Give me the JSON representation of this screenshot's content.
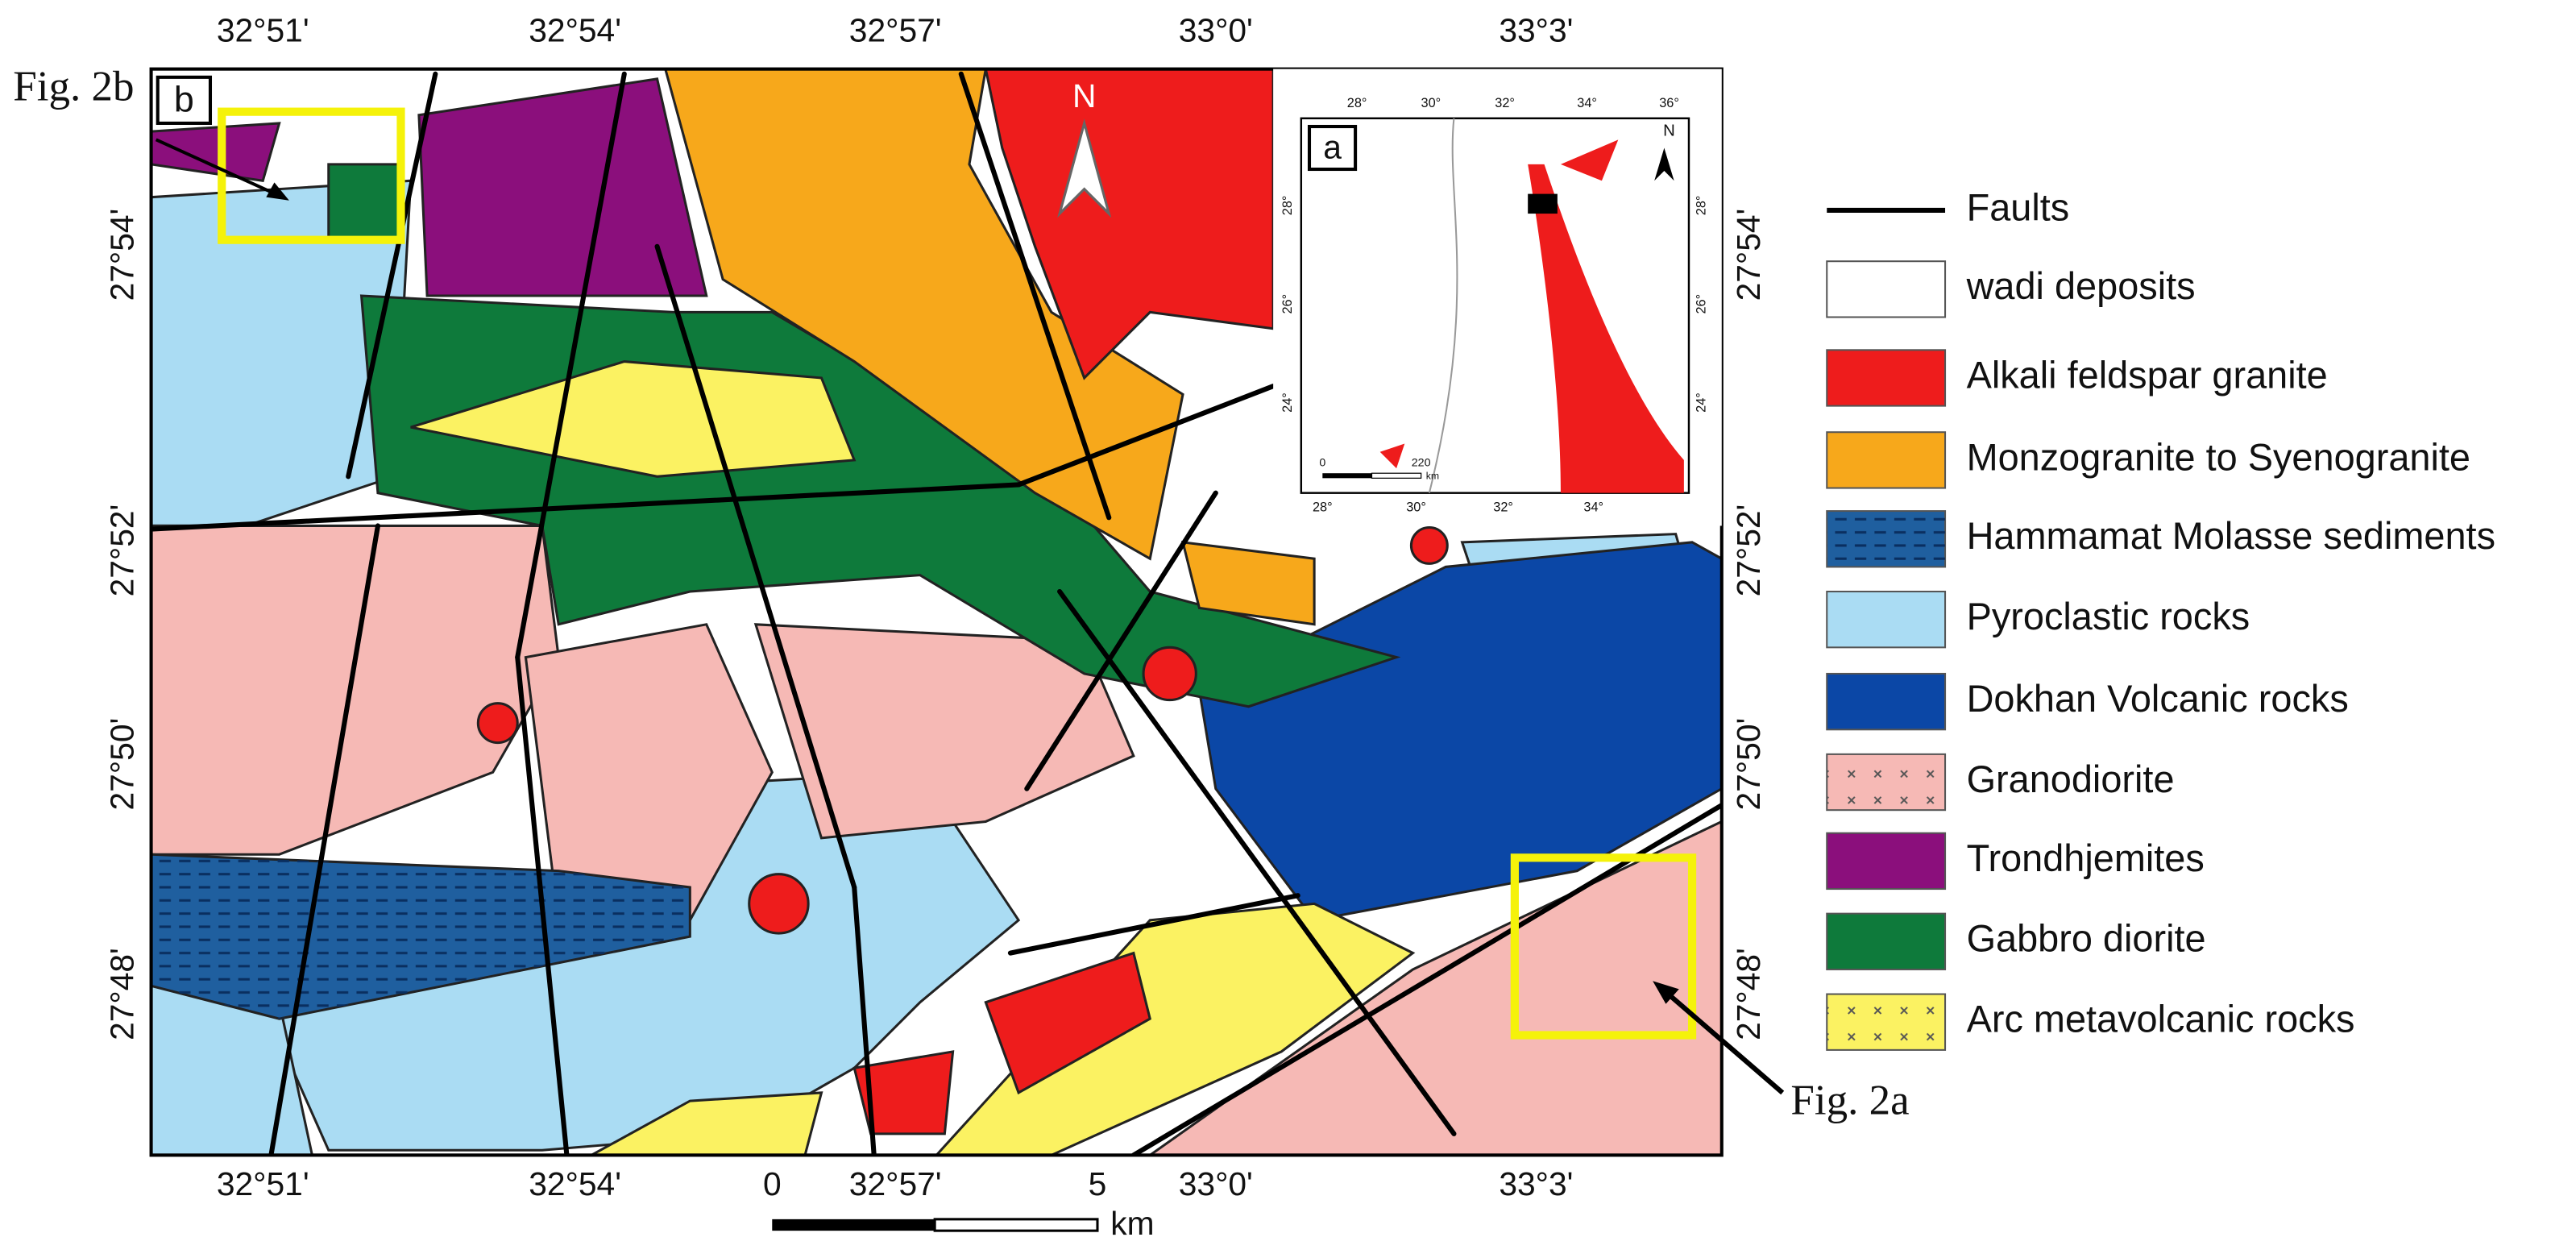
{
  "map": {
    "label": "b",
    "top_ticks": [
      "32°51'",
      "32°54'",
      "32°57'",
      "33°0'",
      "33°3'"
    ],
    "bottom_ticks": [
      "32°51'",
      "32°54'",
      "32°57'",
      "33°0'",
      "33°3'"
    ],
    "left_ticks": [
      "27°54'",
      "27°52'",
      "27°50'",
      "27°48'"
    ],
    "right_ticks": [
      "27°54'",
      "27°52'",
      "27°50'",
      "27°48'"
    ],
    "north": "N",
    "scale": {
      "labels": [
        "0",
        "5"
      ],
      "unit": "km"
    },
    "callouts": [
      "Fig. 2b",
      "Fig. 2a"
    ]
  },
  "inset": {
    "label": "a",
    "top_ticks": [
      "28°",
      "30°",
      "32°",
      "34°",
      "36°"
    ],
    "bottom_ticks": [
      "28°",
      "30°",
      "32°",
      "34°"
    ],
    "left_ticks": [
      "28°",
      "26°",
      "24°"
    ],
    "right_ticks": [
      "28°",
      "26°",
      "24°"
    ],
    "north": "N",
    "scale": {
      "labels": [
        "0",
        "220"
      ],
      "unit": "km"
    }
  },
  "legend": [
    {
      "label": "Faults",
      "color": "#000000"
    },
    {
      "label": "wadi deposits",
      "color": "#ffffff"
    },
    {
      "label": "Alkali feldspar granite",
      "color": "#ee1c1c"
    },
    {
      "label": "Monzogranite to Syenogranite",
      "color": "#f7a81b"
    },
    {
      "label": "Hammamat Molasse sediments",
      "color": "#1f5f9f"
    },
    {
      "label": "Pyroclastic rocks",
      "color": "#aadcf3"
    },
    {
      "label": "Dokhan Volcanic rocks",
      "color": "#0b47a6"
    },
    {
      "label": "Granodiorite",
      "color": "#f6b9b5"
    },
    {
      "label": "Trondhjemites",
      "color": "#8b0f7c"
    },
    {
      "label": "Gabbro diorite",
      "color": "#0e7a3b"
    },
    {
      "label": "Arc metavolcanic rocks",
      "color": "#fbf262"
    }
  ]
}
